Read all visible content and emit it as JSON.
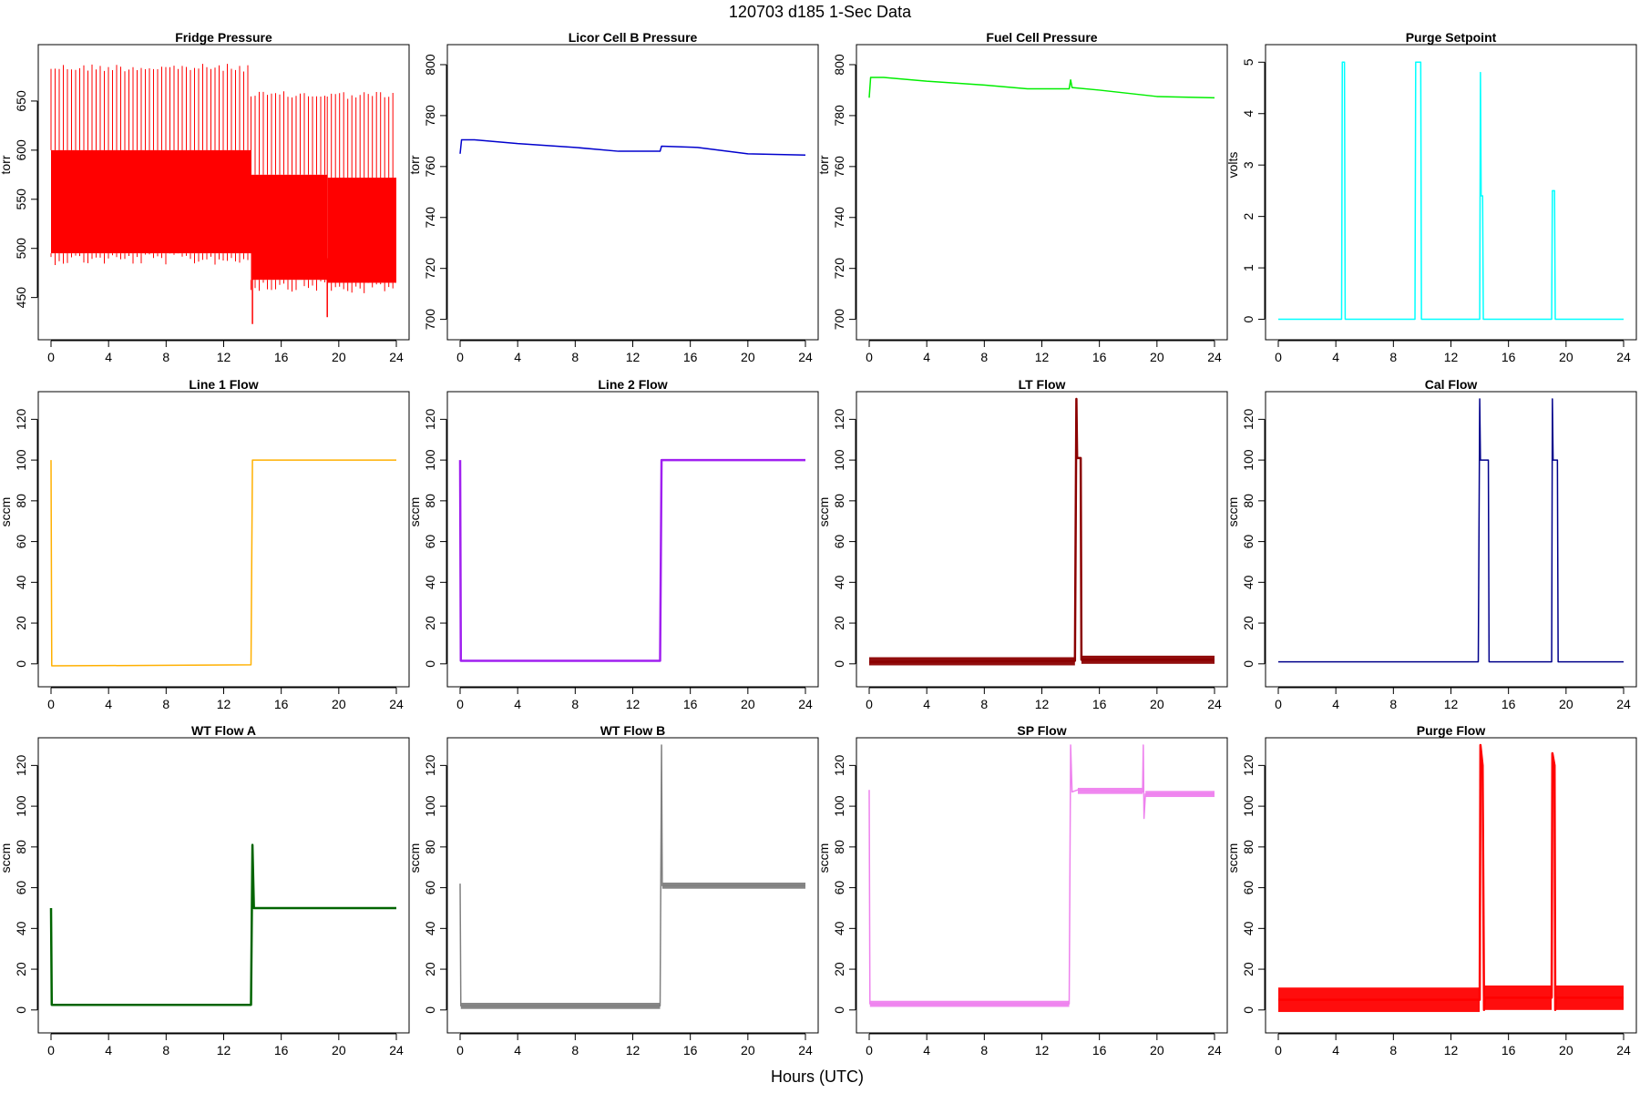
{
  "figure": {
    "title": "120703   d185   1-Sec Data",
    "xlabel": "Hours (UTC)"
  },
  "chart_data": [
    {
      "type": "line",
      "title": "Fridge Pressure",
      "ylabel": "torr",
      "color": "#ff0000",
      "xlim": [
        0,
        24
      ],
      "xticks": [
        0,
        4,
        8,
        12,
        16,
        20,
        24
      ],
      "ylim": [
        420,
        700
      ],
      "yticks": [
        450,
        500,
        550,
        600,
        650
      ],
      "series": [
        {
          "segments": [
            {
              "x": [
                0,
                13.9
              ],
              "low": 495,
              "high": 600,
              "spike": 688
            },
            {
              "x": [
                13.9,
                19.2
              ],
              "low": 468,
              "high": 575,
              "spike": 660
            },
            {
              "x": [
                19.2,
                24
              ],
              "low": 465,
              "high": 572,
              "spike": 660
            }
          ],
          "dips": [
            {
              "x": 14.0,
              "y": 423
            },
            {
              "x": 19.2,
              "y": 430
            }
          ],
          "points": []
        }
      ]
    },
    {
      "type": "line",
      "title": "Licor Cell B Pressure",
      "ylabel": "torr",
      "color": "#0000cd",
      "xlim": [
        0,
        24
      ],
      "xticks": [
        0,
        4,
        8,
        12,
        16,
        20,
        24
      ],
      "ylim": [
        697,
        805
      ],
      "yticks": [
        700,
        720,
        740,
        760,
        780,
        800
      ],
      "series": [
        {
          "points": [
            [
              0,
              765
            ],
            [
              0.1,
              770.5
            ],
            [
              1,
              770.5
            ],
            [
              4,
              769
            ],
            [
              8,
              767.5
            ],
            [
              11,
              766
            ],
            [
              13.9,
              766
            ],
            [
              14,
              768
            ],
            [
              16.5,
              767.5
            ],
            [
              20,
              765
            ],
            [
              24,
              764.5
            ]
          ]
        }
      ]
    },
    {
      "type": "line",
      "title": "Fuel Cell Pressure",
      "ylabel": "torr",
      "color": "#00ee00",
      "xlim": [
        0,
        24
      ],
      "xticks": [
        0,
        4,
        8,
        12,
        16,
        20,
        24
      ],
      "ylim": [
        697,
        805
      ],
      "yticks": [
        700,
        720,
        740,
        760,
        780,
        800
      ],
      "series": [
        {
          "points": [
            [
              0,
              787
            ],
            [
              0.1,
              795
            ],
            [
              1,
              795
            ],
            [
              4,
              793.5
            ],
            [
              8,
              792
            ],
            [
              11,
              790.5
            ],
            [
              13.9,
              790.5
            ],
            [
              14,
              794
            ],
            [
              14.1,
              791
            ],
            [
              16,
              790
            ],
            [
              20,
              787.5
            ],
            [
              24,
              787
            ]
          ]
        }
      ]
    },
    {
      "type": "line",
      "title": "Purge Setpoint",
      "ylabel": "volts",
      "color": "#00ffff",
      "xlim": [
        0,
        24
      ],
      "xticks": [
        0,
        4,
        8,
        12,
        16,
        20,
        24
      ],
      "ylim": [
        -0.15,
        5.2
      ],
      "yticks": [
        0,
        1,
        2,
        3,
        4,
        5
      ],
      "series": [
        {
          "points": [
            [
              0,
              0
            ],
            [
              4.4,
              0
            ],
            [
              4.45,
              5
            ],
            [
              4.6,
              5
            ],
            [
              4.65,
              0
            ],
            [
              9.5,
              0
            ],
            [
              9.55,
              5
            ],
            [
              9.9,
              5
            ],
            [
              9.95,
              0
            ],
            [
              14.0,
              0
            ],
            [
              14.05,
              4.8
            ],
            [
              14.1,
              2.4
            ],
            [
              14.2,
              2.4
            ],
            [
              14.25,
              0
            ],
            [
              19.0,
              0
            ],
            [
              19.05,
              2.5
            ],
            [
              19.2,
              2.5
            ],
            [
              19.25,
              0
            ],
            [
              24,
              0
            ]
          ]
        }
      ]
    },
    {
      "type": "line",
      "title": "Line 1 Flow",
      "ylabel": "sccm",
      "color": "#ffb000",
      "xlim": [
        0,
        24
      ],
      "xticks": [
        0,
        4,
        8,
        12,
        16,
        20,
        24
      ],
      "ylim": [
        -5,
        130
      ],
      "yticks": [
        0,
        20,
        40,
        60,
        80,
        100,
        120
      ],
      "series": [
        {
          "points": [
            [
              0,
              100
            ],
            [
              0.05,
              -1
            ],
            [
              13.9,
              -0.5
            ],
            [
              14.0,
              100
            ],
            [
              24,
              100
            ]
          ]
        }
      ]
    },
    {
      "type": "line",
      "title": "Line 2 Flow",
      "ylabel": "sccm",
      "color": "#a020f0",
      "xlim": [
        0,
        24
      ],
      "xticks": [
        0,
        4,
        8,
        12,
        16,
        20,
        24
      ],
      "ylim": [
        -5,
        130
      ],
      "yticks": [
        0,
        20,
        40,
        60,
        80,
        100,
        120
      ],
      "series": [
        {
          "points": [
            [
              0,
              100
            ],
            [
              0.05,
              1.5
            ],
            [
              13.9,
              1.5
            ],
            [
              14.0,
              100
            ],
            [
              24,
              100
            ]
          ]
        }
      ]
    },
    {
      "type": "line",
      "title": "LT Flow",
      "ylabel": "sccm",
      "color": "#8b0000",
      "xlim": [
        0,
        24
      ],
      "xticks": [
        0,
        4,
        8,
        12,
        16,
        20,
        24
      ],
      "ylim": [
        -5,
        130
      ],
      "yticks": [
        0,
        20,
        40,
        60,
        80,
        100,
        120
      ],
      "series": [
        {
          "points": [
            [
              0,
              1
            ],
            [
              14.3,
              1.5
            ],
            [
              14.4,
              130
            ],
            [
              14.45,
              101
            ],
            [
              14.7,
              101
            ],
            [
              14.75,
              2
            ],
            [
              24,
              2
            ]
          ]
        }
      ]
    },
    {
      "type": "line",
      "title": "Cal Flow",
      "ylabel": "sccm",
      "color": "#00008b",
      "xlim": [
        0,
        24
      ],
      "xticks": [
        0,
        4,
        8,
        12,
        16,
        20,
        24
      ],
      "ylim": [
        -5,
        130
      ],
      "yticks": [
        0,
        20,
        40,
        60,
        80,
        100,
        120
      ],
      "series": [
        {
          "points": [
            [
              0,
              1
            ],
            [
              13.9,
              1
            ],
            [
              14.0,
              130
            ],
            [
              14.05,
              100
            ],
            [
              14.6,
              100
            ],
            [
              14.65,
              1
            ],
            [
              19.0,
              1
            ],
            [
              19.05,
              130
            ],
            [
              19.1,
              100
            ],
            [
              19.4,
              100
            ],
            [
              19.45,
              1
            ],
            [
              24,
              1
            ]
          ]
        }
      ]
    },
    {
      "type": "line",
      "title": "WT Flow A",
      "ylabel": "sccm",
      "color": "#006400",
      "xlim": [
        0,
        24
      ],
      "xticks": [
        0,
        4,
        8,
        12,
        16,
        20,
        24
      ],
      "ylim": [
        -5,
        130
      ],
      "yticks": [
        0,
        20,
        40,
        60,
        80,
        100,
        120
      ],
      "series": [
        {
          "points": [
            [
              0,
              50
            ],
            [
              0.05,
              2.5
            ],
            [
              13.9,
              2.5
            ],
            [
              14.0,
              81
            ],
            [
              14.1,
              50
            ],
            [
              24,
              50
            ]
          ]
        }
      ]
    },
    {
      "type": "line",
      "title": "WT Flow B",
      "ylabel": "sccm",
      "color": "#808080",
      "xlim": [
        0,
        24
      ],
      "xticks": [
        0,
        4,
        8,
        12,
        16,
        20,
        24
      ],
      "ylim": [
        -5,
        130
      ],
      "yticks": [
        0,
        20,
        40,
        60,
        80,
        100,
        120
      ],
      "series": [
        {
          "points": [
            [
              0,
              62
            ],
            [
              0.05,
              2
            ],
            [
              13.9,
              2
            ],
            [
              14.0,
              130
            ],
            [
              14.05,
              61
            ],
            [
              24,
              61
            ]
          ]
        }
      ]
    },
    {
      "type": "line",
      "title": "SP Flow",
      "ylabel": "sccm",
      "color": "#ee82ee",
      "xlim": [
        0,
        24
      ],
      "xticks": [
        0,
        4,
        8,
        12,
        16,
        20,
        24
      ],
      "ylim": [
        -5,
        130
      ],
      "yticks": [
        0,
        20,
        40,
        60,
        80,
        100,
        120
      ],
      "series": [
        {
          "points": [
            [
              0,
              108
            ],
            [
              0.05,
              3
            ],
            [
              13.9,
              3
            ],
            [
              14.0,
              130
            ],
            [
              14.1,
              107
            ],
            [
              14.5,
              108
            ],
            [
              19.0,
              107
            ],
            [
              19.05,
              130
            ],
            [
              19.1,
              94
            ],
            [
              19.2,
              106
            ],
            [
              24,
              106
            ]
          ]
        }
      ]
    },
    {
      "type": "line",
      "title": "Purge Flow",
      "ylabel": "sccm",
      "color": "#ff0000",
      "xlim": [
        0,
        24
      ],
      "xticks": [
        0,
        4,
        8,
        12,
        16,
        20,
        24
      ],
      "ylim": [
        -5,
        130
      ],
      "yticks": [
        0,
        20,
        40,
        60,
        80,
        100,
        120
      ],
      "series": [
        {
          "points": [
            [
              0,
              5
            ],
            [
              14.0,
              5
            ],
            [
              14.05,
              130
            ],
            [
              14.2,
              120
            ],
            [
              14.3,
              0
            ],
            [
              14.35,
              6
            ],
            [
              19.0,
              6
            ],
            [
              19.05,
              126
            ],
            [
              19.2,
              120
            ],
            [
              19.25,
              0
            ],
            [
              19.3,
              6
            ],
            [
              24,
              6
            ]
          ]
        }
      ]
    }
  ]
}
